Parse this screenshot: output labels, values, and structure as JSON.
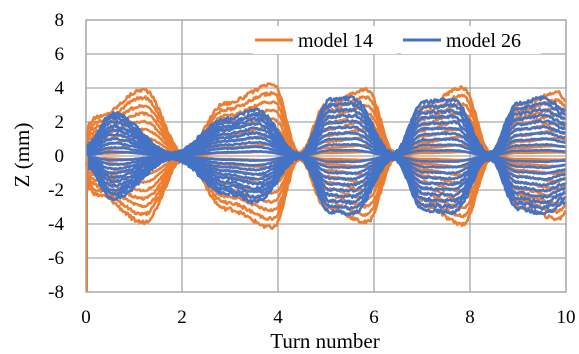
{
  "chart_data": {
    "type": "line",
    "xlabel": "Turn number",
    "ylabel": "Z (mm)",
    "xlim": [
      0,
      10
    ],
    "ylim": [
      -8,
      8
    ],
    "xticks": [
      "0",
      "2",
      "4",
      "6",
      "8",
      "10"
    ],
    "yticks": [
      "8",
      "6",
      "4",
      "2",
      "0",
      "-2",
      "-4",
      "-6",
      "-8"
    ],
    "grid": true,
    "legend": "top-right",
    "series": [
      {
        "name": "model 14",
        "color": "#ED7D31",
        "nodes_x": [
          0,
          0.25,
          1.2,
          2.05,
          2.9,
          3.9,
          4.45,
          5.0,
          5.85,
          6.45,
          7.0,
          7.85,
          8.45,
          9.0,
          9.85,
          10
        ],
        "envelope_max": [
          1.8,
          2.3,
          3.9,
          0.15,
          3.1,
          4.2,
          0.15,
          3.0,
          3.9,
          0.15,
          2.9,
          4.0,
          0.15,
          3.0,
          3.7,
          3.3
        ],
        "comment_free_amplitude_levels": [
          1.0,
          0.88,
          0.76,
          0.64,
          0.52,
          0.4,
          0.28,
          0.16,
          0.06
        ]
      },
      {
        "name": "model 26",
        "color": "#4472C4",
        "nodes_x": [
          0,
          0.55,
          1.8,
          2.95,
          3.55,
          4.45,
          5.1,
          5.55,
          6.4,
          7.05,
          7.65,
          8.4,
          9.0,
          9.55,
          10
        ],
        "envelope_max": [
          0.6,
          2.5,
          0.15,
          2.2,
          2.7,
          0.1,
          3.3,
          3.4,
          0.15,
          3.2,
          3.3,
          0.15,
          3.1,
          3.4,
          2.7
        ],
        "comment_free_amplitude_levels": [
          1.0,
          0.9,
          0.8,
          0.7,
          0.6,
          0.5,
          0.4,
          0.3,
          0.2,
          0.1
        ]
      }
    ]
  }
}
